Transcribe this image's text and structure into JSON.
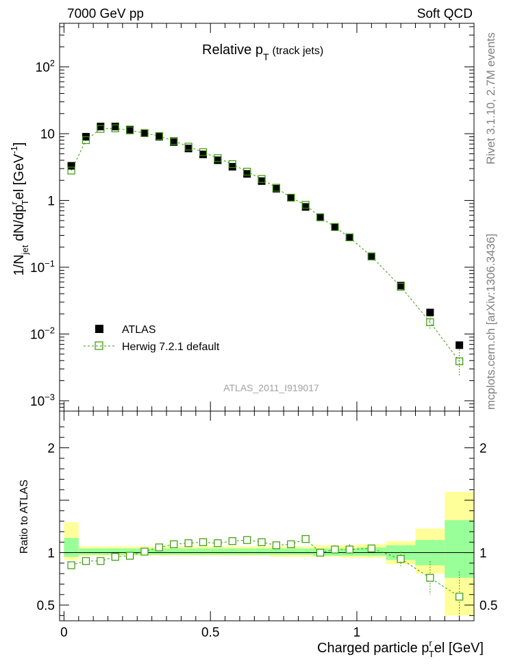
{
  "header": {
    "left": "7000 GeV pp",
    "right": "Soft QCD"
  },
  "sidebar": {
    "rivet": "Rivet 3.1.10,  2.7M events",
    "mcplots": "mcplots.cern.ch [arXiv:1306.3436]"
  },
  "plot": {
    "title_main": "Relative p",
    "title_sub": "T",
    "title_extra": "(track jets)",
    "watermark": "ATLAS_2011_I919017",
    "ylabel": "1/N",
    "ylabel_sub1": "jet",
    "ylabel_mid": " dN/dp",
    "ylabel_sup": "r",
    "ylabel_sub2": "T",
    "ylabel_end": "el [GeV",
    "ylabel_sup2": "-1",
    "ylabel_close": "]",
    "ratio_ylabel": "Ratio to ATLAS",
    "xlabel_main": "Charged particle p",
    "xlabel_sup": "r",
    "xlabel_sub": "T",
    "xlabel_end": "el [GeV]"
  },
  "legend": {
    "data_label": "ATLAS",
    "mc_label": "Herwig 7.2.1 default"
  },
  "colors": {
    "data": "#000000",
    "mc": "#339900",
    "band_inner": "#99ff99",
    "band_outer": "#ffff99"
  },
  "chart_data": {
    "type": "scatter",
    "xlim": [
      -0.015,
      1.4
    ],
    "ylim": [
      0.0007,
      450
    ],
    "ratio_ylim": [
      0.35,
      2.35
    ],
    "log_y": true,
    "x_ticks": [
      "0",
      "0.5",
      "1"
    ],
    "y_ticks": [
      "10^-3",
      "10^-2",
      "10^-1",
      "1",
      "10",
      "10^2"
    ],
    "ratio_ticks": [
      "0.5",
      "1",
      "2"
    ],
    "bins": [
      {
        "x": 0.025,
        "lo": 0.0,
        "hi": 0.05,
        "atlas": 3.3,
        "mc": 2.8,
        "ratio": 0.88,
        "r_err": 0.0,
        "band_in": [
          0.96,
          1.14
        ],
        "band_out": [
          0.93,
          1.29
        ]
      },
      {
        "x": 0.075,
        "lo": 0.05,
        "hi": 0.1,
        "atlas": 9.0,
        "mc": 8.0,
        "ratio": 0.92,
        "r_err": 0.0,
        "band_in": [
          0.98,
          1.04
        ],
        "band_out": [
          0.97,
          1.06
        ]
      },
      {
        "x": 0.125,
        "lo": 0.1,
        "hi": 0.15,
        "atlas": 12.8,
        "mc": 11.8,
        "ratio": 0.92,
        "r_err": 0.0,
        "band_in": [
          0.98,
          1.04
        ],
        "band_out": [
          0.97,
          1.06
        ]
      },
      {
        "x": 0.175,
        "lo": 0.15,
        "hi": 0.2,
        "atlas": 12.8,
        "mc": 12.0,
        "ratio": 0.96,
        "r_err": 0.0,
        "band_in": [
          0.98,
          1.04
        ],
        "band_out": [
          0.97,
          1.06
        ]
      },
      {
        "x": 0.225,
        "lo": 0.2,
        "hi": 0.25,
        "atlas": 11.5,
        "mc": 11.2,
        "ratio": 0.97,
        "r_err": 0.0,
        "band_in": [
          0.98,
          1.04
        ],
        "band_out": [
          0.97,
          1.06
        ]
      },
      {
        "x": 0.275,
        "lo": 0.25,
        "hi": 0.3,
        "atlas": 10.2,
        "mc": 10.2,
        "ratio": 1.01,
        "r_err": 0.0,
        "band_in": [
          0.98,
          1.04
        ],
        "band_out": [
          0.97,
          1.06
        ]
      },
      {
        "x": 0.325,
        "lo": 0.3,
        "hi": 0.35,
        "atlas": 9.0,
        "mc": 9.2,
        "ratio": 1.05,
        "r_err": 0.0,
        "band_in": [
          0.98,
          1.04
        ],
        "band_out": [
          0.97,
          1.06
        ]
      },
      {
        "x": 0.375,
        "lo": 0.35,
        "hi": 0.4,
        "atlas": 7.5,
        "mc": 7.8,
        "ratio": 1.08,
        "r_err": 0.0,
        "band_in": [
          0.98,
          1.04
        ],
        "band_out": [
          0.97,
          1.06
        ]
      },
      {
        "x": 0.425,
        "lo": 0.4,
        "hi": 0.45,
        "atlas": 6.0,
        "mc": 6.4,
        "ratio": 1.09,
        "r_err": 0.0,
        "band_in": [
          0.98,
          1.04
        ],
        "band_out": [
          0.97,
          1.06
        ]
      },
      {
        "x": 0.475,
        "lo": 0.45,
        "hi": 0.5,
        "atlas": 4.9,
        "mc": 5.3,
        "ratio": 1.1,
        "r_err": 0.0,
        "band_in": [
          0.98,
          1.04
        ],
        "band_out": [
          0.97,
          1.06
        ]
      },
      {
        "x": 0.525,
        "lo": 0.5,
        "hi": 0.55,
        "atlas": 4.0,
        "mc": 4.3,
        "ratio": 1.09,
        "r_err": 0.0,
        "band_in": [
          0.98,
          1.04
        ],
        "band_out": [
          0.97,
          1.06
        ]
      },
      {
        "x": 0.575,
        "lo": 0.55,
        "hi": 0.6,
        "atlas": 3.2,
        "mc": 3.5,
        "ratio": 1.11,
        "r_err": 0.0,
        "band_in": [
          0.98,
          1.04
        ],
        "band_out": [
          0.97,
          1.06
        ]
      },
      {
        "x": 0.625,
        "lo": 0.6,
        "hi": 0.65,
        "atlas": 2.5,
        "mc": 2.7,
        "ratio": 1.12,
        "r_err": 0.0,
        "band_in": [
          0.98,
          1.04
        ],
        "band_out": [
          0.97,
          1.06
        ]
      },
      {
        "x": 0.675,
        "lo": 0.65,
        "hi": 0.7,
        "atlas": 1.95,
        "mc": 2.1,
        "ratio": 1.1,
        "r_err": 0.0,
        "band_in": [
          0.98,
          1.04
        ],
        "band_out": [
          0.97,
          1.06
        ]
      },
      {
        "x": 0.725,
        "lo": 0.7,
        "hi": 0.75,
        "atlas": 1.5,
        "mc": 1.55,
        "ratio": 1.07,
        "r_err": 0.0,
        "band_in": [
          0.98,
          1.04
        ],
        "band_out": [
          0.96,
          1.06
        ]
      },
      {
        "x": 0.775,
        "lo": 0.75,
        "hi": 0.8,
        "atlas": 1.1,
        "mc": 1.1,
        "ratio": 1.08,
        "r_err": 0.0,
        "band_in": [
          0.98,
          1.04
        ],
        "band_out": [
          0.96,
          1.06
        ]
      },
      {
        "x": 0.825,
        "lo": 0.8,
        "hi": 0.85,
        "atlas": 0.8,
        "mc": 0.86,
        "ratio": 1.13,
        "r_err": 0.03,
        "band_in": [
          0.98,
          1.04
        ],
        "band_out": [
          0.96,
          1.06
        ]
      },
      {
        "x": 0.875,
        "lo": 0.85,
        "hi": 0.9,
        "atlas": 0.56,
        "mc": 0.56,
        "ratio": 1.0,
        "r_err": 0.03,
        "band_in": [
          0.97,
          1.04
        ],
        "band_out": [
          0.96,
          1.07
        ]
      },
      {
        "x": 0.925,
        "lo": 0.9,
        "hi": 0.95,
        "atlas": 0.4,
        "mc": 0.4,
        "ratio": 1.03,
        "r_err": 0.04,
        "band_in": [
          0.97,
          1.04
        ],
        "band_out": [
          0.96,
          1.07
        ]
      },
      {
        "x": 0.975,
        "lo": 0.95,
        "hi": 1.0,
        "atlas": 0.28,
        "mc": 0.28,
        "ratio": 1.03,
        "r_err": 0.05,
        "band_in": [
          0.97,
          1.04
        ],
        "band_out": [
          0.95,
          1.07
        ]
      },
      {
        "x": 1.05,
        "lo": 1.0,
        "hi": 1.1,
        "atlas": 0.145,
        "mc": 0.145,
        "ratio": 1.04,
        "r_err": 0.03,
        "band_in": [
          0.97,
          1.05
        ],
        "band_out": [
          0.95,
          1.08
        ]
      },
      {
        "x": 1.15,
        "lo": 1.1,
        "hi": 1.2,
        "atlas": 0.053,
        "mc": 0.051,
        "ratio": 0.94,
        "r_err": 0.07,
        "band_in": [
          0.93,
          1.07
        ],
        "band_out": [
          0.89,
          1.11
        ]
      },
      {
        "x": 1.25,
        "lo": 1.2,
        "hi": 1.3,
        "atlas": 0.021,
        "mc": 0.015,
        "ratio": 0.76,
        "r_err": 0.16,
        "band_in": [
          0.88,
          1.12
        ],
        "band_out": [
          0.8,
          1.23
        ]
      },
      {
        "x": 1.35,
        "lo": 1.3,
        "hi": 1.4,
        "atlas": 0.0068,
        "mc": 0.0039,
        "ratio": 0.58,
        "r_err": 0.24,
        "band_in": [
          0.76,
          1.31
        ],
        "band_out": [
          0.4,
          1.58
        ]
      }
    ]
  }
}
